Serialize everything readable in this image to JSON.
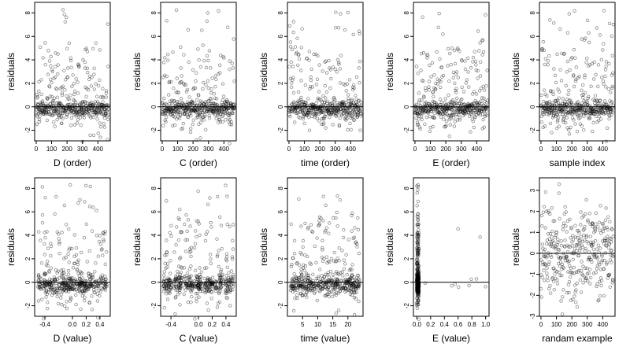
{
  "chart_data": [
    {
      "type": "scatter",
      "xlabel": "D (order)",
      "ylabel": "residuals",
      "xlim": [
        -10,
        480
      ],
      "ylim": [
        -2.9,
        8.9
      ],
      "x_ticks": [
        0,
        100,
        200,
        300,
        400
      ],
      "x_tick_labels": [
        "0",
        "100",
        "200",
        "300",
        "400"
      ],
      "y_ticks": [
        -2,
        0,
        2,
        4,
        6,
        8
      ],
      "y_tick_labels": [
        "-2",
        "0",
        "2",
        "4",
        "6",
        "8"
      ],
      "hline": 0,
      "x_mode": "index",
      "n": 470,
      "seed": 11
    },
    {
      "type": "scatter",
      "xlabel": "C (order)",
      "ylabel": "residuals",
      "xlim": [
        -10,
        480
      ],
      "ylim": [
        -2.9,
        8.9
      ],
      "x_ticks": [
        0,
        100,
        200,
        300,
        400
      ],
      "x_tick_labels": [
        "0",
        "100",
        "200",
        "300",
        "400"
      ],
      "y_ticks": [
        -2,
        0,
        2,
        4,
        6,
        8
      ],
      "y_tick_labels": [
        "-2",
        "0",
        "2",
        "4",
        "6",
        "8"
      ],
      "hline": 0,
      "x_mode": "index",
      "n": 470,
      "seed": 12
    },
    {
      "type": "scatter",
      "xlabel": "time (order)",
      "ylabel": "residuals",
      "xlim": [
        -10,
        480
      ],
      "ylim": [
        -2.9,
        8.9
      ],
      "x_ticks": [
        0,
        100,
        200,
        300,
        400
      ],
      "x_tick_labels": [
        "0",
        "100",
        "200",
        "300",
        "400"
      ],
      "y_ticks": [
        -2,
        0,
        2,
        4,
        6,
        8
      ],
      "y_tick_labels": [
        "-2",
        "0",
        "2",
        "4",
        "6",
        "8"
      ],
      "hline": 0,
      "x_mode": "index",
      "n": 470,
      "seed": 13
    },
    {
      "type": "scatter",
      "xlabel": "E (order)",
      "ylabel": "residuals",
      "xlim": [
        -10,
        480
      ],
      "ylim": [
        -2.9,
        8.9
      ],
      "x_ticks": [
        0,
        100,
        200,
        300,
        400
      ],
      "x_tick_labels": [
        "0",
        "100",
        "200",
        "300",
        "400"
      ],
      "y_ticks": [
        -2,
        0,
        2,
        4,
        6,
        8
      ],
      "y_tick_labels": [
        "-2",
        "0",
        "2",
        "4",
        "6",
        "8"
      ],
      "hline": 0,
      "x_mode": "index",
      "n": 470,
      "seed": 14
    },
    {
      "type": "scatter",
      "xlabel": "sample index",
      "ylabel": "residuals",
      "xlim": [
        -10,
        480
      ],
      "ylim": [
        -2.9,
        8.9
      ],
      "x_ticks": [
        0,
        100,
        200,
        300,
        400
      ],
      "x_tick_labels": [
        "0",
        "100",
        "200",
        "300",
        "400"
      ],
      "y_ticks": [
        -2,
        0,
        2,
        4,
        6,
        8
      ],
      "y_tick_labels": [
        "-2",
        "0",
        "2",
        "4",
        "6",
        "8"
      ],
      "hline": 0,
      "x_mode": "index",
      "n": 470,
      "seed": 15
    },
    {
      "type": "scatter",
      "xlabel": "D (value)",
      "ylabel": "residuals",
      "xlim": [
        -0.55,
        0.55
      ],
      "ylim": [
        -2.9,
        8.9
      ],
      "x_ticks": [
        -0.4,
        0.0,
        0.2,
        0.4
      ],
      "x_tick_labels": [
        "-0.4",
        "0.0",
        "0.2",
        "0.4"
      ],
      "y_ticks": [
        -2,
        0,
        2,
        4,
        6,
        8
      ],
      "y_tick_labels": [
        "-2",
        "0",
        "2",
        "4",
        "6",
        "8"
      ],
      "hline": 0,
      "x_mode": "value_uniform",
      "x_range": [
        -0.5,
        0.5
      ],
      "n": 470,
      "seed": 21
    },
    {
      "type": "scatter",
      "xlabel": "C (value)",
      "ylabel": "residuals",
      "xlim": [
        -0.55,
        0.55
      ],
      "ylim": [
        -2.9,
        8.9
      ],
      "x_ticks": [
        -0.4,
        0.0,
        0.2,
        0.4
      ],
      "x_tick_labels": [
        "-0.4",
        "0.0",
        "0.2",
        "0.4"
      ],
      "y_ticks": [
        -2,
        0,
        2,
        4,
        6,
        8
      ],
      "y_tick_labels": [
        "-2",
        "0",
        "2",
        "4",
        "6",
        "8"
      ],
      "hline": 0,
      "x_mode": "value_clustered",
      "x_range": [
        -0.5,
        0.5
      ],
      "n": 470,
      "seed": 22
    },
    {
      "type": "scatter",
      "xlabel": "time (value)",
      "ylabel": "residuals",
      "xlim": [
        0,
        25
      ],
      "ylim": [
        -2.9,
        8.9
      ],
      "x_ticks": [
        5,
        10,
        15,
        20
      ],
      "x_tick_labels": [
        "5",
        "10",
        "15",
        "20"
      ],
      "y_ticks": [
        -2,
        0,
        2,
        4,
        6,
        8
      ],
      "y_tick_labels": [
        "-2",
        "0",
        "2",
        "4",
        "6",
        "8"
      ],
      "hline": 0,
      "x_mode": "value_uniform",
      "x_range": [
        1,
        24
      ],
      "n": 470,
      "seed": 23
    },
    {
      "type": "scatter",
      "xlabel": "E (value)",
      "ylabel": "residuals",
      "xlim": [
        -0.05,
        1.05
      ],
      "ylim": [
        -2.9,
        8.9
      ],
      "x_ticks": [
        0.0,
        0.2,
        0.4,
        0.6,
        0.8,
        1.0
      ],
      "x_tick_labels": [
        "0.0",
        "0.2",
        "0.4",
        "0.6",
        "0.8",
        "1.0"
      ],
      "y_ticks": [
        -2,
        0,
        2,
        4,
        6,
        8
      ],
      "y_tick_labels": [
        "-2",
        "0",
        "2",
        "4",
        "6",
        "8"
      ],
      "hline": 0,
      "x_mode": "value_skewed",
      "x_range": [
        0,
        1
      ],
      "n": 470,
      "seed": 24
    },
    {
      "type": "scatter",
      "xlabel": "randam example",
      "ylabel": "residuals",
      "xlim": [
        -10,
        480
      ],
      "ylim": [
        -3.0,
        3.6
      ],
      "x_ticks": [
        0,
        100,
        200,
        300,
        400
      ],
      "x_tick_labels": [
        "0",
        "100",
        "200",
        "300",
        "400"
      ],
      "y_ticks": [
        -3,
        -2,
        -1,
        0,
        1,
        2,
        3
      ],
      "y_tick_labels": [
        "-3",
        "-2",
        "-1",
        "0",
        "1",
        "2",
        "3"
      ],
      "hline": 0,
      "x_mode": "random_normal",
      "n": 350,
      "seed": 25
    }
  ]
}
